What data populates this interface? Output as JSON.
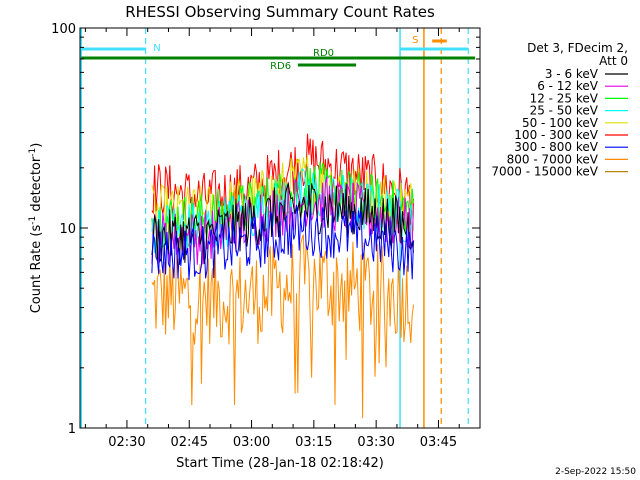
{
  "chart_data": {
    "type": "line",
    "title": "RHESSI Observing Summary Count Rates",
    "xlabel": "Start Time (28-Jan-18 02:18:42)",
    "ylabel": "Count Rate (s",
    "ylabel_sup1": "-1",
    "ylabel_mid": " detector",
    "ylabel_sup2": "-1",
    "ylabel_end": ")",
    "y_scale": "log",
    "ylim": [
      1,
      100
    ],
    "y_ticks": [
      {
        "value": 1,
        "label": "1"
      },
      {
        "value": 10,
        "label": "10"
      },
      {
        "value": 100,
        "label": "100"
      }
    ],
    "xlim": [
      "02:18:42",
      "03:55:00"
    ],
    "x_ticks": [
      "02:30",
      "02:45",
      "03:00",
      "03:15",
      "03:30",
      "03:45"
    ],
    "data_range": [
      "02:36",
      "03:39"
    ],
    "legend_header": [
      "Det 3, FDecim 2,",
      "Att 0"
    ],
    "series": [
      {
        "name": "3 - 6 keV",
        "color": "#000000",
        "values": [
          9,
          9,
          11,
          13,
          12,
          10
        ]
      },
      {
        "name": "6 - 12 keV",
        "color": "#e000e0",
        "values": [
          9,
          9,
          11,
          14,
          12,
          10
        ]
      },
      {
        "name": "12 - 25 keV",
        "color": "#00ff00",
        "values": [
          11,
          11,
          13,
          16,
          14,
          12
        ]
      },
      {
        "name": "25 - 50 keV",
        "color": "#00ffff",
        "values": [
          10,
          10,
          12,
          15,
          13,
          11
        ]
      },
      {
        "name": "50 - 100 keV",
        "color": "#e0e000",
        "values": [
          12,
          12,
          14,
          18,
          15,
          13
        ]
      },
      {
        "name": "100 - 300 keV",
        "color": "#ff0000",
        "values": [
          16,
          14,
          16,
          22,
          18,
          14
        ]
      },
      {
        "name": "300 - 800 keV",
        "color": "#0000ff",
        "values": [
          7.5,
          7.5,
          8.5,
          10,
          9,
          7.5
        ]
      },
      {
        "name": "800 - 7000 keV",
        "color": "#ff8c00",
        "values": [
          4.5,
          4.5,
          4.5,
          5.5,
          5,
          4.5
        ]
      },
      {
        "name": "7000 - 15000 keV",
        "color": "#b8860b",
        "values": []
      }
    ],
    "annotations": {
      "night_label": "N",
      "saa_label": "S",
      "rd0_label": "RD0",
      "rd6_label": "RD6",
      "colors": {
        "night": "#40e0ff",
        "saa": "#ff8c00",
        "decim": "#008000"
      }
    }
  },
  "footer": {
    "date_stamp": "2-Sep-2022 15:50"
  }
}
